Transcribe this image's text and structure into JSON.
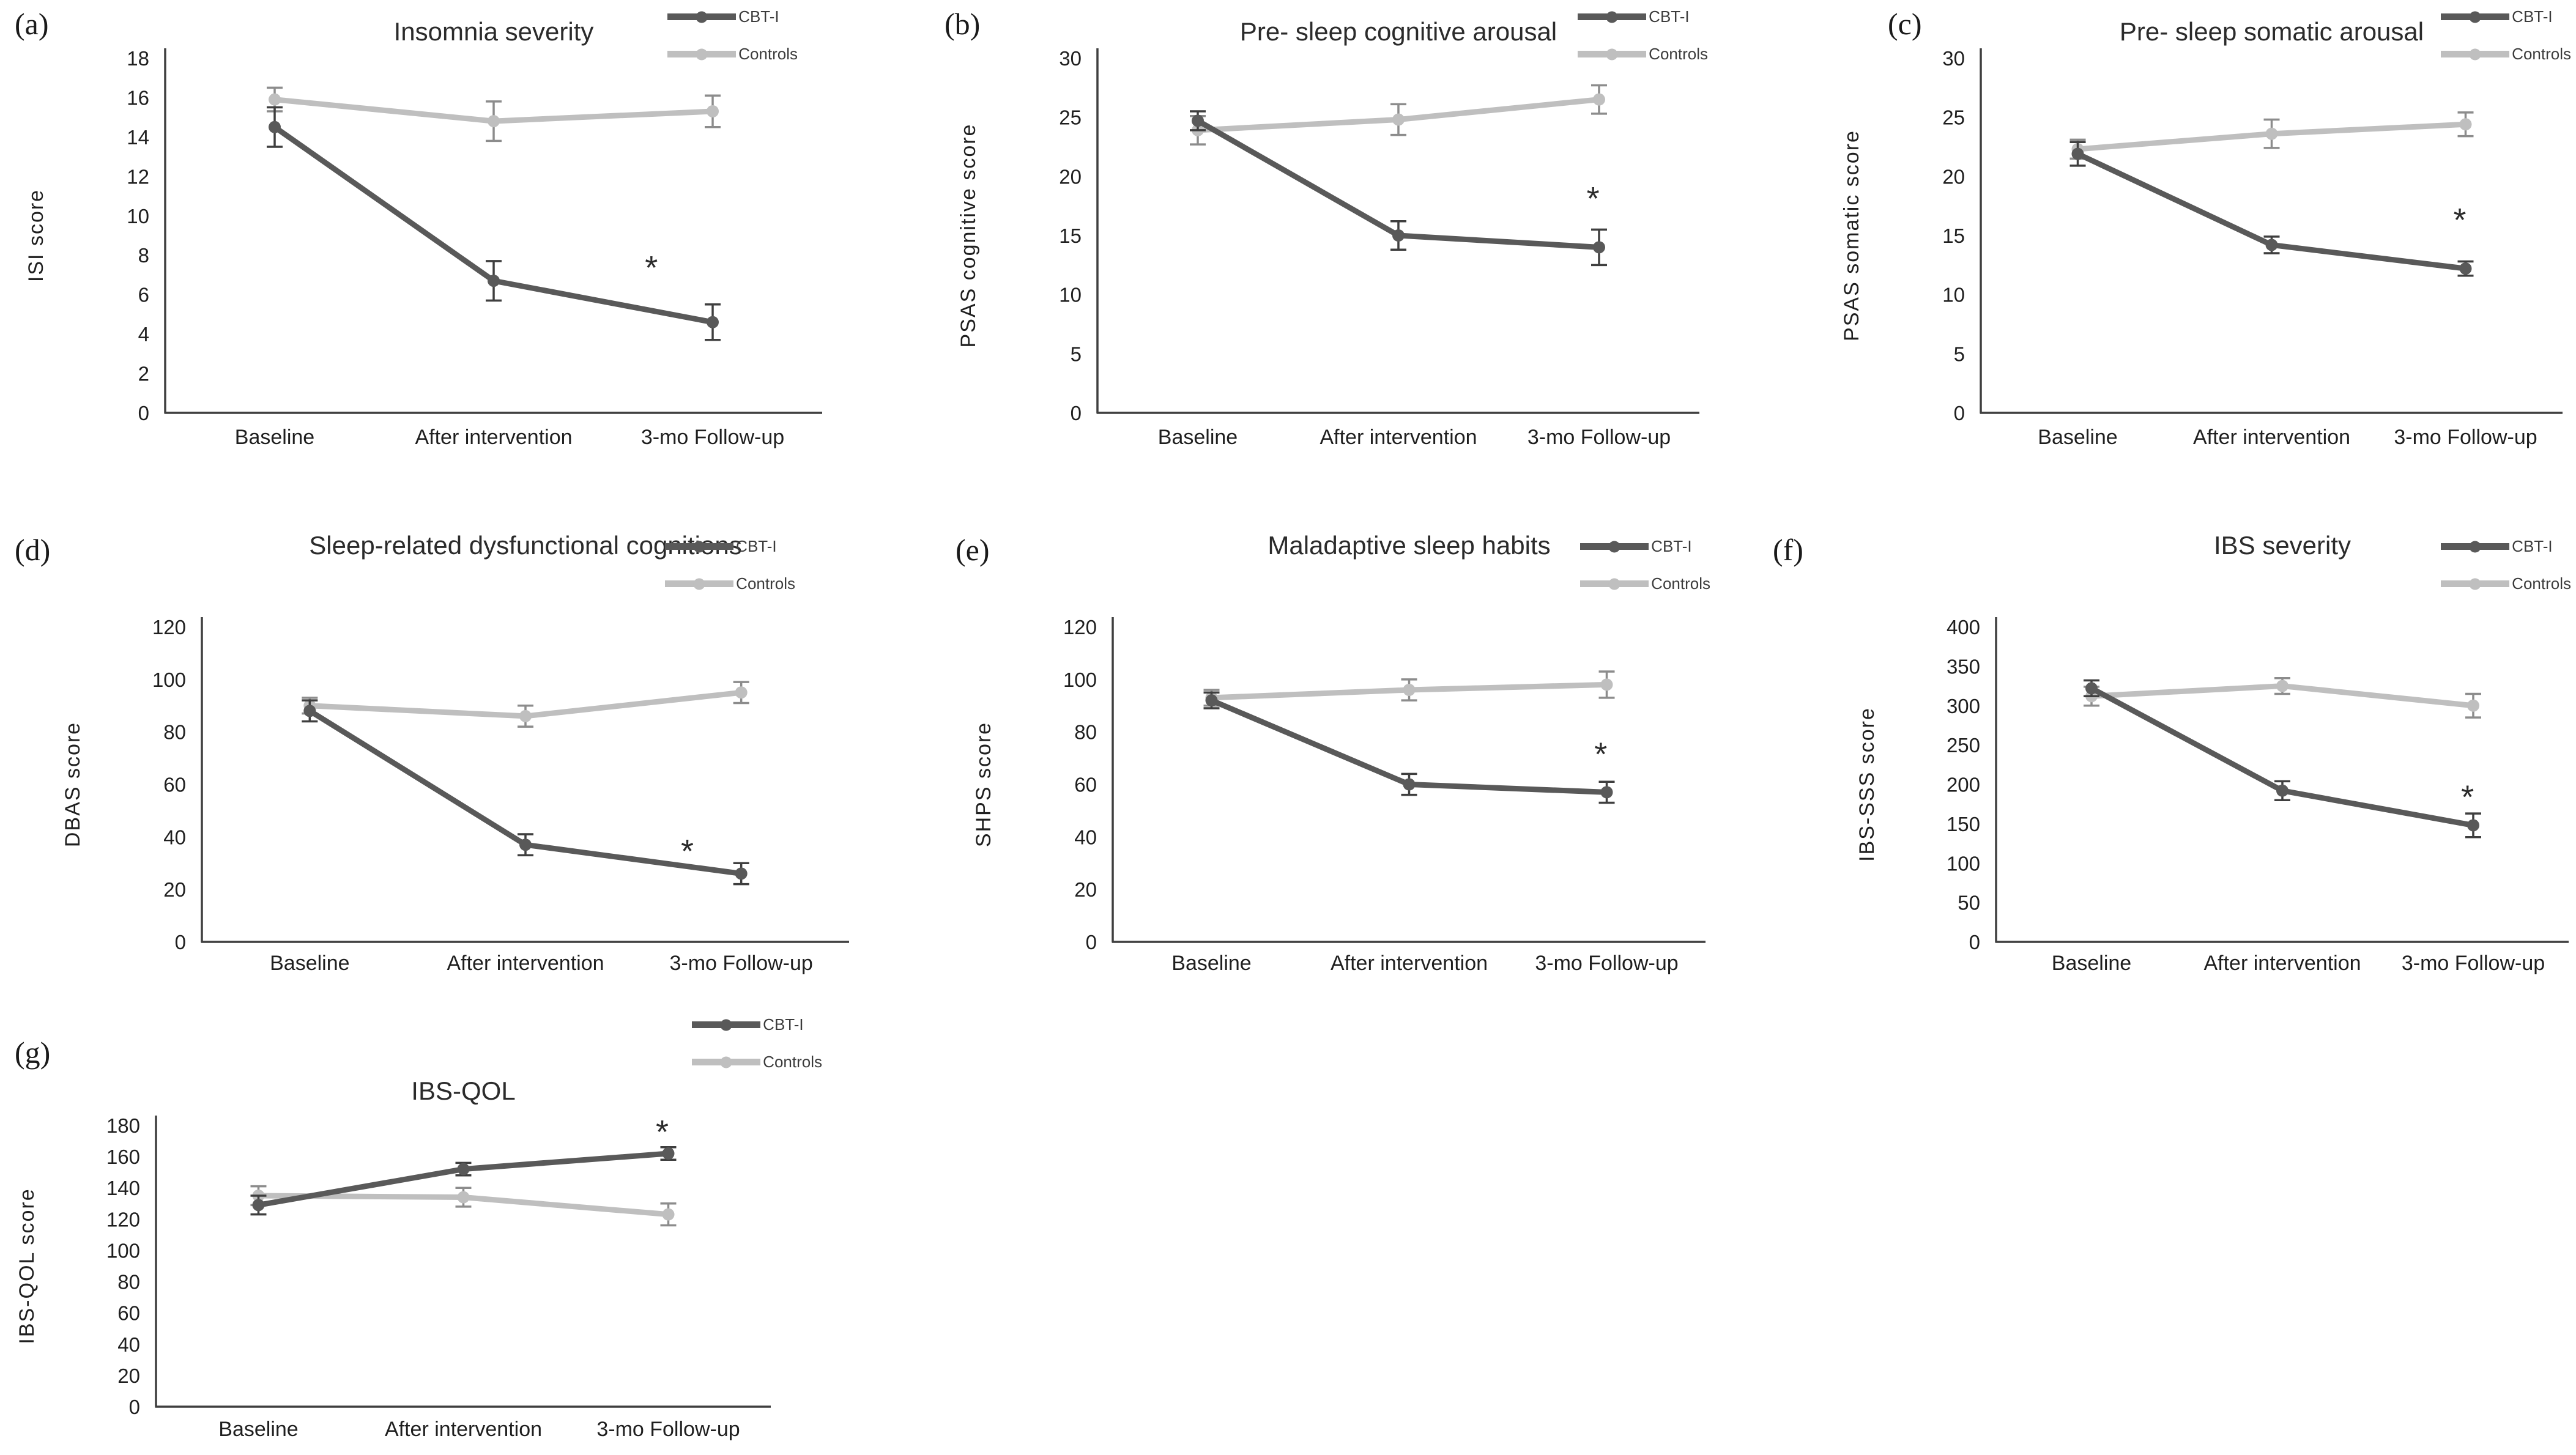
{
  "figure": {
    "background": "#ffffff",
    "x_categories": [
      "Baseline",
      "After intervention",
      "3-mo Follow-up"
    ],
    "legend_labels": [
      "CBT-I",
      "Controls"
    ],
    "colors": {
      "cbt_i_line": "#595959",
      "controls_line": "#bfbfbf",
      "cbt_i_error": "#3f3f3f",
      "controls_error": "#8c8c8c",
      "axis": "#3f3f3f",
      "text": "#1f1f1f"
    }
  },
  "chart_data": [
    {
      "type": "line",
      "panel": "(a)",
      "title": "Insomnia severity",
      "xlabel": "",
      "ylabel": "ISI score",
      "categories": [
        "Baseline",
        "After intervention",
        "3-mo Follow-up"
      ],
      "ylim": [
        0,
        18
      ],
      "ytick": 2,
      "grid": false,
      "legend_position": "top-right",
      "series": [
        {
          "name": "CBT-I",
          "color": "#595959",
          "error_color": "#3f3f3f",
          "values": [
            14.5,
            6.7,
            4.6
          ],
          "errors": [
            1.0,
            1.0,
            0.9
          ]
        },
        {
          "name": "Controls",
          "color": "#bfbfbf",
          "error_color": "#8c8c8c",
          "values": [
            15.9,
            14.8,
            15.3
          ],
          "errors": [
            0.6,
            1.0,
            0.8
          ]
        }
      ],
      "significance": {
        "symbol": "*",
        "x": 1.72,
        "y": 7.3
      }
    },
    {
      "type": "line",
      "panel": "(b)",
      "title": "Pre- sleep cognitive arousal",
      "xlabel": "",
      "ylabel": "PSAS cognitive score",
      "categories": [
        "Baseline",
        "After intervention",
        "3-mo Follow-up"
      ],
      "ylim": [
        0,
        30
      ],
      "ytick": 5,
      "grid": false,
      "legend_position": "top-right",
      "series": [
        {
          "name": "CBT-I",
          "color": "#595959",
          "error_color": "#3f3f3f",
          "values": [
            24.7,
            15.0,
            14.0
          ],
          "errors": [
            0.8,
            1.2,
            1.5
          ]
        },
        {
          "name": "Controls",
          "color": "#bfbfbf",
          "error_color": "#8c8c8c",
          "values": [
            23.9,
            24.8,
            26.5
          ],
          "errors": [
            1.2,
            1.3,
            1.2
          ]
        }
      ],
      "significance": {
        "symbol": "*",
        "x": 1.97,
        "y": 18.0
      }
    },
    {
      "type": "line",
      "panel": "(c)",
      "title": "Pre- sleep somatic arousal",
      "xlabel": "",
      "ylabel": "PSAS somatic score",
      "categories": [
        "Baseline",
        "After intervention",
        "3-mo Follow-up"
      ],
      "ylim": [
        0,
        30
      ],
      "ytick": 5,
      "grid": false,
      "legend_position": "top-right",
      "series": [
        {
          "name": "CBT-I",
          "color": "#595959",
          "error_color": "#3f3f3f",
          "values": [
            21.9,
            14.2,
            12.2
          ],
          "errors": [
            1.0,
            0.7,
            0.6
          ]
        },
        {
          "name": "Controls",
          "color": "#bfbfbf",
          "error_color": "#8c8c8c",
          "values": [
            22.3,
            23.6,
            24.4
          ],
          "errors": [
            0.8,
            1.2,
            1.0
          ]
        }
      ],
      "significance": {
        "symbol": "*",
        "x": 1.97,
        "y": 16.2
      }
    },
    {
      "type": "line",
      "panel": "(d)",
      "title": "Sleep-related dysfunctional cognitions",
      "xlabel": "",
      "ylabel": "DBAS score",
      "categories": [
        "Baseline",
        "After intervention",
        "3-mo Follow-up"
      ],
      "ylim": [
        0,
        120
      ],
      "ytick": 20,
      "grid": false,
      "legend_position": "top-right",
      "series": [
        {
          "name": "CBT-I",
          "color": "#595959",
          "error_color": "#3f3f3f",
          "values": [
            88,
            37,
            26
          ],
          "errors": [
            4,
            4,
            4
          ]
        },
        {
          "name": "Controls",
          "color": "#bfbfbf",
          "error_color": "#8c8c8c",
          "values": [
            90,
            86,
            95
          ],
          "errors": [
            3,
            4,
            4
          ]
        }
      ],
      "significance": {
        "symbol": "*",
        "x": 1.75,
        "y": 34
      }
    },
    {
      "type": "line",
      "panel": "(e)",
      "title": "Maladaptive sleep habits",
      "xlabel": "",
      "ylabel": "SHPS score",
      "categories": [
        "Baseline",
        "After intervention",
        "3-mo Follow-up"
      ],
      "ylim": [
        0,
        120
      ],
      "ytick": 20,
      "grid": false,
      "legend_position": "top-right",
      "series": [
        {
          "name": "CBT-I",
          "color": "#595959",
          "error_color": "#3f3f3f",
          "values": [
            92,
            60,
            57
          ],
          "errors": [
            3,
            4,
            4
          ]
        },
        {
          "name": "Controls",
          "color": "#bfbfbf",
          "error_color": "#8c8c8c",
          "values": [
            93,
            96,
            98
          ],
          "errors": [
            3,
            4,
            5
          ]
        }
      ],
      "significance": {
        "symbol": "*",
        "x": 1.97,
        "y": 71
      }
    },
    {
      "type": "line",
      "panel": "(f)",
      "title": "IBS severity",
      "xlabel": "",
      "ylabel": "IBS-SSS score",
      "categories": [
        "Baseline",
        "After intervention",
        "3-mo Follow-up"
      ],
      "ylim": [
        0,
        400
      ],
      "ytick": 50,
      "grid": false,
      "legend_position": "top-right",
      "series": [
        {
          "name": "CBT-I",
          "color": "#595959",
          "error_color": "#3f3f3f",
          "values": [
            322,
            192,
            148
          ],
          "errors": [
            10,
            12,
            15
          ]
        },
        {
          "name": "Controls",
          "color": "#bfbfbf",
          "error_color": "#8c8c8c",
          "values": [
            312,
            325,
            300
          ],
          "errors": [
            12,
            10,
            15
          ]
        }
      ],
      "significance": {
        "symbol": "*",
        "x": 1.97,
        "y": 182
      }
    },
    {
      "type": "line",
      "panel": "(g)",
      "title": "IBS-QOL",
      "xlabel": "",
      "ylabel": "IBS-QOL score",
      "categories": [
        "Baseline",
        "After intervention",
        "3-mo Follow-up"
      ],
      "ylim": [
        0,
        180
      ],
      "ytick": 20,
      "grid": false,
      "legend_position": "top-right",
      "series": [
        {
          "name": "CBT-I",
          "color": "#595959",
          "error_color": "#3f3f3f",
          "values": [
            129,
            152,
            162
          ],
          "errors": [
            6,
            4,
            4
          ]
        },
        {
          "name": "Controls",
          "color": "#bfbfbf",
          "error_color": "#8c8c8c",
          "values": [
            135,
            134,
            123
          ],
          "errors": [
            6,
            6,
            7
          ]
        }
      ],
      "significance": {
        "symbol": "*",
        "x": 1.97,
        "y": 175
      }
    }
  ]
}
